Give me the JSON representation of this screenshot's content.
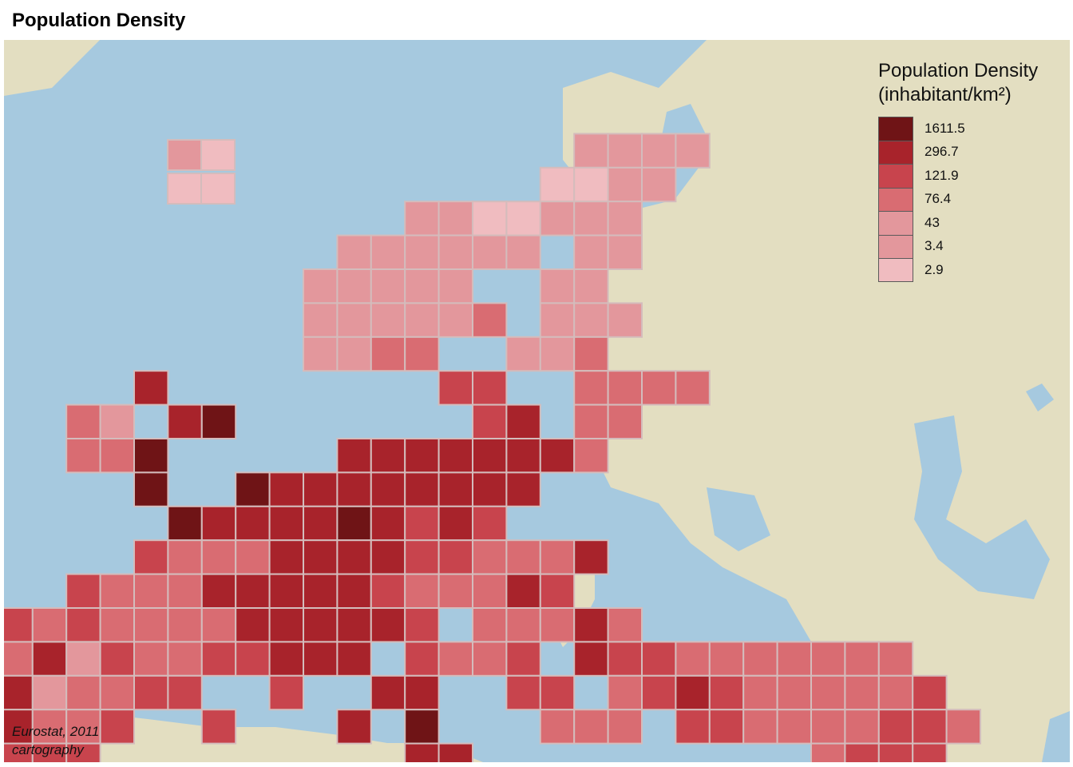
{
  "title": "Population Density",
  "source": {
    "line1": "Eurostat, 2011",
    "line2": "cartography"
  },
  "colors": {
    "sea": "#a6c9df",
    "land": "#e3dec1",
    "grid": "#d4bcbc",
    "classes": [
      "#6f1416",
      "#a8232b",
      "#c8444d",
      "#d96c72",
      "#e3979c",
      "#f0bcc0"
    ]
  },
  "legend": {
    "title_line1": "Population Density",
    "title_line2": "(inhabitant/km²)",
    "breaks": [
      "1611.5",
      "296.7",
      "121.9",
      "76.4",
      "43",
      "3.4",
      "2.9"
    ]
  }
}
